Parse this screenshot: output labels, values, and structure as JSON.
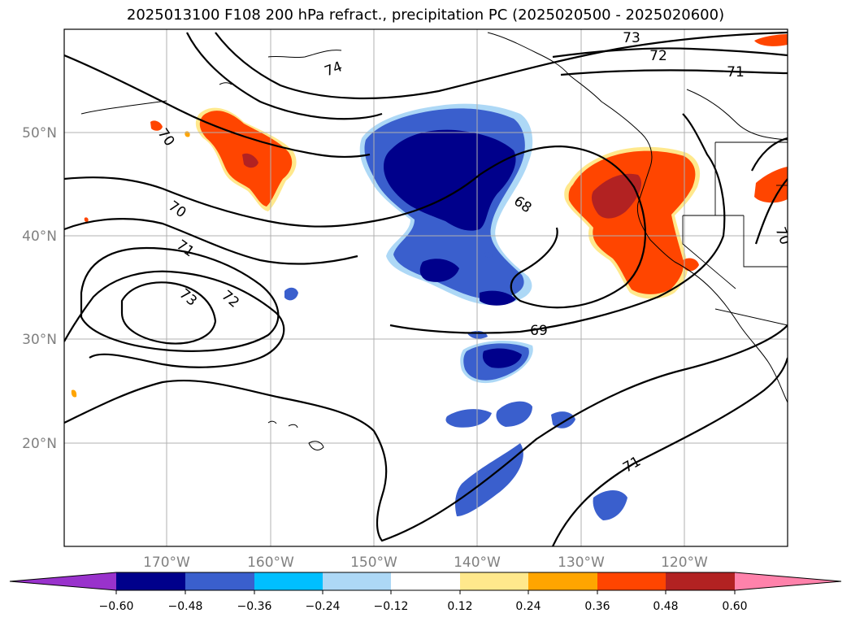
{
  "title": "2025013100 F108 200 hPa refract., precipitation PC (2025020500 - 2025020600)",
  "lat_ticks": [
    "50°N",
    "40°N",
    "30°N",
    "20°N"
  ],
  "lon_ticks": [
    "170°W",
    "160°W",
    "150°W",
    "140°W",
    "130°W",
    "120°W"
  ],
  "contour_labels": [
    "73",
    "72",
    "71",
    "74",
    "70",
    "70",
    "71",
    "73",
    "72",
    "68",
    "69",
    "71",
    "70"
  ],
  "colorbar": {
    "ticks": [
      "−0.60",
      "−0.48",
      "−0.36",
      "−0.24",
      "−0.12",
      "0.12",
      "0.24",
      "0.36",
      "0.48",
      "0.60"
    ],
    "colors": [
      "#9932CC",
      "#00008B",
      "#3A5FCD",
      "#00BFFF",
      "#ADD8F6",
      "#FFFFFF",
      "#FFE88C",
      "#FFA500",
      "#FF4500",
      "#B22222",
      "#FF82AB"
    ]
  }
}
